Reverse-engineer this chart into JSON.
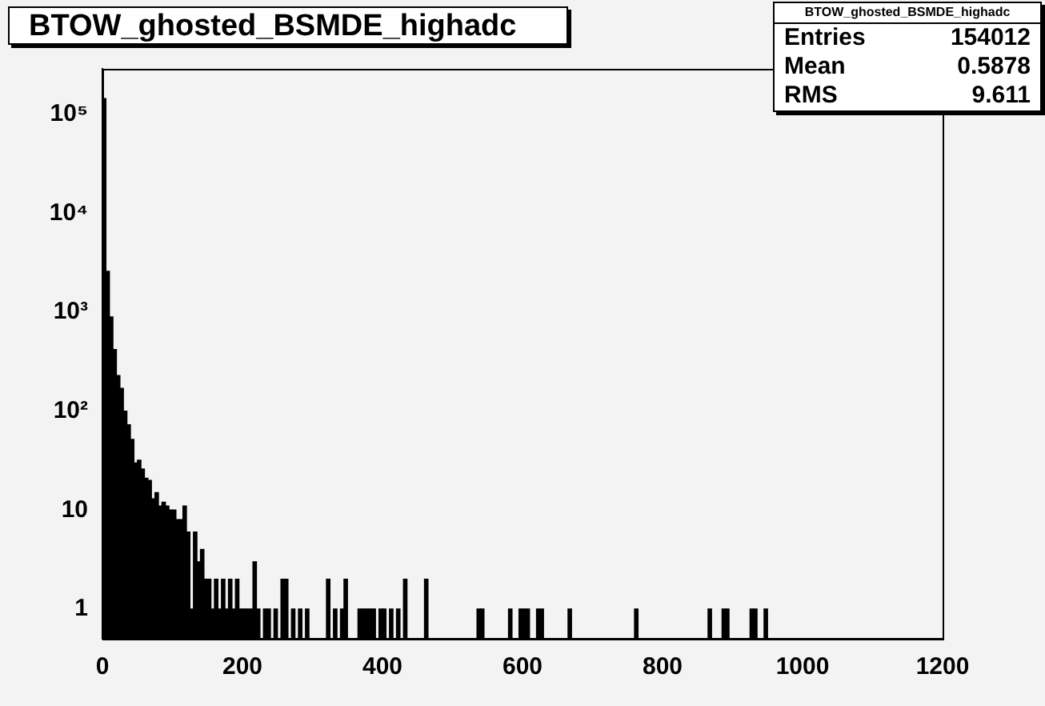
{
  "chart_data": {
    "type": "histogram",
    "title": "BTOW_ghosted_BSMDE_highadc",
    "bins": [
      0,
      5,
      10,
      15,
      20,
      25,
      30,
      35,
      40,
      45,
      50,
      55,
      60,
      65,
      70,
      75,
      80,
      85,
      90,
      95,
      100,
      105,
      110,
      115,
      120,
      125,
      130,
      135,
      140,
      145,
      150,
      155,
      160,
      165,
      170,
      175,
      180,
      185,
      190,
      195,
      200,
      205,
      210,
      215,
      220,
      225,
      230,
      235,
      240,
      245,
      250,
      255,
      260,
      265,
      270,
      275,
      280,
      285,
      290,
      295,
      300,
      305,
      310,
      315,
      320,
      325,
      330,
      335,
      340,
      345,
      350,
      355,
      360,
      365,
      370,
      375,
      380,
      385,
      390,
      395,
      400,
      405,
      410,
      415,
      420,
      425,
      430,
      435,
      440,
      445,
      450,
      455,
      460,
      465,
      470,
      475,
      480,
      485,
      490,
      495,
      500,
      505,
      510,
      515,
      520,
      525,
      530,
      535,
      540,
      545,
      550,
      555,
      560,
      565,
      570,
      575,
      580,
      585,
      590,
      595,
      600,
      605,
      610,
      615,
      620,
      625,
      630,
      635,
      640,
      645,
      650,
      655,
      660,
      665,
      670,
      675,
      680,
      685,
      690,
      695,
      700,
      705,
      710,
      715,
      720,
      725,
      730,
      735,
      740,
      745,
      750,
      755,
      760,
      765,
      770,
      775,
      780,
      785,
      790,
      795,
      800,
      805,
      810,
      815,
      820,
      825,
      830,
      835,
      840,
      845,
      850,
      855,
      860,
      865,
      870,
      875,
      880,
      885,
      890,
      895,
      900,
      905,
      910,
      915,
      920,
      925,
      930,
      935,
      940,
      945,
      950,
      955,
      960,
      965,
      970,
      975,
      980,
      985,
      990,
      995,
      1000,
      1005,
      1010,
      1015,
      1020,
      1025,
      1030,
      1035,
      1040,
      1045,
      1050,
      1055,
      1060,
      1065,
      1070,
      1075,
      1080,
      1085,
      1090,
      1095,
      1100,
      1105,
      1110,
      1115,
      1120,
      1125,
      1130,
      1135,
      1140,
      1145,
      1150,
      1155,
      1160,
      1165,
      1170,
      1175,
      1180,
      1185,
      1190,
      1195,
      1200
    ],
    "values": [
      145000,
      2600,
      900,
      420,
      230,
      170,
      100,
      73,
      52,
      30,
      32,
      26,
      21,
      20,
      13,
      15,
      11,
      12,
      11,
      10,
      10,
      8,
      8,
      11,
      6,
      1,
      6,
      3,
      4,
      2,
      2,
      1,
      2,
      1,
      2,
      1,
      2,
      1,
      2,
      1,
      1,
      1,
      1,
      3,
      1,
      null,
      1,
      1,
      null,
      1,
      null,
      2,
      2,
      null,
      1,
      null,
      1,
      null,
      1,
      null,
      null,
      null,
      null,
      null,
      2,
      null,
      1,
      null,
      1,
      2,
      null,
      null,
      null,
      1,
      1,
      1,
      1,
      1,
      null,
      1,
      1,
      null,
      1,
      null,
      1,
      null,
      2,
      null,
      null,
      null,
      null,
      null,
      2,
      null,
      null,
      null,
      null,
      null,
      null,
      null,
      null,
      null,
      null,
      null,
      null,
      null,
      null,
      1,
      1,
      null,
      null,
      null,
      null,
      null,
      null,
      null,
      1,
      null,
      null,
      1,
      1,
      1,
      null,
      null,
      1,
      1,
      null,
      null,
      null,
      null,
      null,
      null,
      null,
      1,
      null,
      null,
      null,
      null,
      null,
      null,
      null,
      null,
      null,
      null,
      null,
      null,
      null,
      null,
      null,
      null,
      null,
      null,
      1,
      null,
      null,
      null,
      null,
      null,
      null,
      null,
      null,
      null,
      null,
      null,
      null,
      null,
      null,
      null,
      null,
      null,
      null,
      null,
      null,
      1,
      null,
      null,
      null,
      1,
      1,
      null,
      null,
      null,
      null,
      null,
      null,
      1,
      1,
      null,
      null,
      1,
      null,
      null,
      null,
      null,
      null,
      null,
      null,
      null,
      null,
      null,
      null,
      null,
      null,
      null,
      null,
      null,
      null,
      null,
      null,
      null,
      null,
      null,
      null,
      null,
      null,
      null,
      null,
      null,
      null,
      null,
      null,
      null,
      null,
      null,
      null,
      null,
      null,
      null,
      null,
      null,
      null,
      null,
      null,
      null,
      null,
      null,
      null,
      null,
      null,
      null
    ],
    "color": "#000000",
    "log": "y",
    "xlim": [
      0,
      1200
    ],
    "ylim": [
      0.5,
      290000
    ],
    "xticks": [
      0,
      200,
      400,
      600,
      800,
      1000,
      1200
    ],
    "yticks": [
      1,
      10,
      {
        "value": 100,
        "label": "10²"
      },
      {
        "value": 1000,
        "label": "10³"
      },
      {
        "value": 10000,
        "label": "10⁴"
      },
      {
        "value": 100000,
        "label": "10⁵"
      }
    ],
    "grid": false,
    "legend": false,
    "annotations": [
      "BTOW_ghosted_BSMDE_highadc",
      "Entries 154012",
      "Mean 0.5878",
      "RMS 9.611"
    ]
  }
}
